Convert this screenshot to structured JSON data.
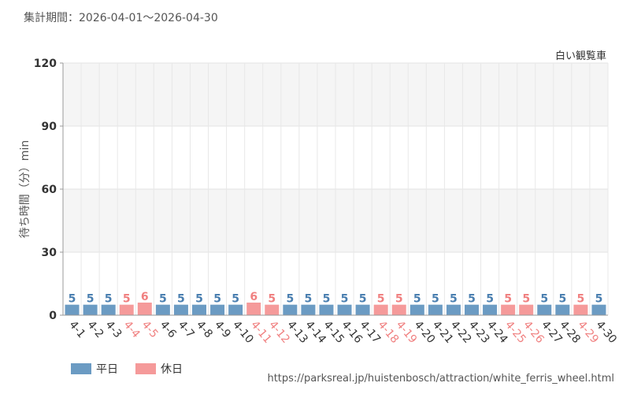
{
  "period_label": "集計期間：2026-04-01～2026-04-30",
  "attraction_name": "白い観覧車",
  "source_url": "https://parksreal.jp/huistenbosch/attraction/white_ferris_wheel.html",
  "legend": [
    {
      "label": "平日",
      "color": "#6b9bc3"
    },
    {
      "label": "休日",
      "color": "#f59a9a"
    }
  ],
  "chart_data": {
    "type": "bar",
    "ylabel": "待ち時間（分）min",
    "ylim": [
      0,
      120
    ],
    "yticks": [
      0,
      30,
      60,
      90,
      120
    ],
    "grid": true,
    "legend_position": "bottom-left",
    "categories": [
      "4-1",
      "4-2",
      "4-3",
      "4-4",
      "4-5",
      "4-6",
      "4-7",
      "4-8",
      "4-9",
      "4-10",
      "4-11",
      "4-12",
      "4-13",
      "4-14",
      "4-15",
      "4-16",
      "4-17",
      "4-18",
      "4-19",
      "4-20",
      "4-21",
      "4-22",
      "4-23",
      "4-24",
      "4-25",
      "4-26",
      "4-27",
      "4-28",
      "4-29",
      "4-30"
    ],
    "values": [
      5,
      5,
      5,
      5,
      6,
      5,
      5,
      5,
      5,
      5,
      6,
      5,
      5,
      5,
      5,
      5,
      5,
      5,
      5,
      5,
      5,
      5,
      5,
      5,
      5,
      5,
      5,
      5,
      5,
      5
    ],
    "day_type": [
      "平日",
      "平日",
      "平日",
      "休日",
      "休日",
      "平日",
      "平日",
      "平日",
      "平日",
      "平日",
      "休日",
      "休日",
      "平日",
      "平日",
      "平日",
      "平日",
      "平日",
      "休日",
      "休日",
      "平日",
      "平日",
      "平日",
      "平日",
      "平日",
      "休日",
      "休日",
      "平日",
      "平日",
      "休日",
      "平日"
    ],
    "colors": {
      "weekday_bar": "#6b9bc3",
      "holiday_bar": "#f59a9a",
      "weekday_label": "#4a7fb0",
      "holiday_label": "#f08080",
      "weekday_tick": "#333333",
      "holiday_tick": "#f08080"
    }
  }
}
